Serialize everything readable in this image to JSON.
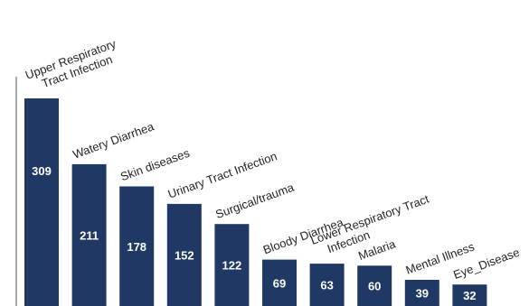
{
  "chart_data": {
    "type": "bar",
    "categories": [
      "Upper Respiratory\nTract Infection",
      "Watery Diarrhea",
      "Skin diseases",
      "Urinary Tract Infection",
      "Surgical/trauma",
      "Bloody Diarrhea",
      "Lower Respiratory Tract\nInfection",
      "Malaria",
      "Mental Illness",
      "Eye_Disease"
    ],
    "values": [
      309,
      211,
      178,
      152,
      122,
      69,
      63,
      60,
      39,
      32
    ],
    "data_labels": [
      "309",
      "211",
      "178",
      "152",
      "122",
      "69",
      "63",
      "60",
      "39",
      "32"
    ],
    "bar_color": "#1f3864",
    "label_color": "#ffffff",
    "ylim": [
      0,
      309
    ],
    "grid": false,
    "legend": "none"
  }
}
